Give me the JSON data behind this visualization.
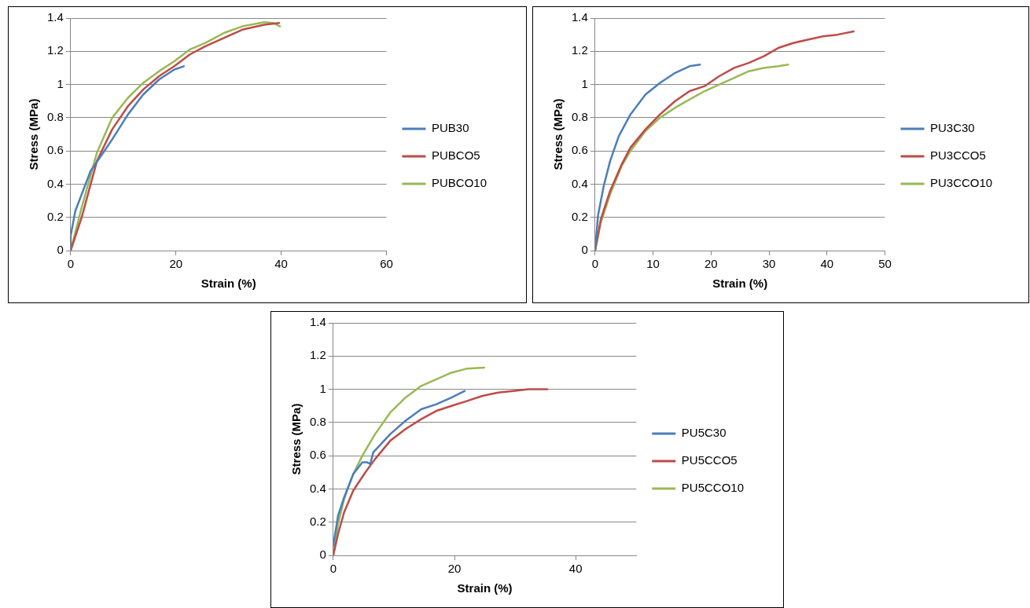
{
  "chart_data": [
    {
      "type": "line",
      "xlabel": "Strain (%)",
      "ylabel": "Stress (MPa)",
      "xlim": [
        0,
        60
      ],
      "xticks": [
        0,
        20,
        40,
        60
      ],
      "ylim": [
        0,
        1.4
      ],
      "yticks": [
        0,
        0.2,
        0.4,
        0.6,
        0.8,
        1,
        1.2,
        1.4
      ],
      "grid": "y",
      "legend": "right",
      "marker": "none",
      "line_style": "solid",
      "series": [
        {
          "name": "PUB30",
          "color": "#4a7ebb",
          "x": [
            0,
            0,
            0.9,
            3.8,
            6.2,
            7.9,
            10.9,
            13.8,
            16.8,
            19.7,
            21.5
          ],
          "values": [
            0,
            0.09,
            0.24,
            0.48,
            0.59,
            0.67,
            0.82,
            0.94,
            1.03,
            1.09,
            1.11
          ]
        },
        {
          "name": "PUBCO5",
          "color": "#be4b48",
          "x": [
            0,
            2.1,
            5,
            7.9,
            10.9,
            13.8,
            16.8,
            19.7,
            22.6,
            25.6,
            29.1,
            32.6,
            36.8,
            39.6
          ],
          "values": [
            0,
            0.2,
            0.54,
            0.73,
            0.87,
            0.97,
            1.05,
            1.11,
            1.18,
            1.23,
            1.28,
            1.33,
            1.36,
            1.37
          ]
        },
        {
          "name": "PUBCO10",
          "color": "#98b954",
          "x": [
            0,
            2.1,
            5,
            7.9,
            10.9,
            13.8,
            16.8,
            19.7,
            22.6,
            25.6,
            29.1,
            32.6,
            36.8,
            38.5,
            39.8
          ],
          "values": [
            0,
            0.26,
            0.59,
            0.8,
            0.92,
            1.01,
            1.08,
            1.14,
            1.21,
            1.25,
            1.31,
            1.35,
            1.375,
            1.37,
            1.35
          ]
        }
      ]
    },
    {
      "type": "line",
      "xlabel": "Strain (%)",
      "ylabel": "Stress (MPa)",
      "xlim": [
        0,
        50
      ],
      "xticks": [
        0,
        10,
        20,
        30,
        40,
        50
      ],
      "ylim": [
        0,
        1.4
      ],
      "yticks": [
        0,
        0.2,
        0.4,
        0.6,
        0.8,
        1,
        1.2,
        1.4
      ],
      "grid": "y",
      "legend": "right",
      "marker": "none",
      "line_style": "solid",
      "series": [
        {
          "name": "PU3C30",
          "color": "#4a7ebb",
          "x": [
            0,
            0.5,
            1.5,
            2.6,
            4.1,
            6.1,
            8.7,
            11.2,
            13.8,
            16.3,
            18.1
          ],
          "values": [
            0,
            0.21,
            0.39,
            0.54,
            0.69,
            0.82,
            0.94,
            1.01,
            1.07,
            1.11,
            1.12
          ]
        },
        {
          "name": "PU3CCO5",
          "color": "#be4b48",
          "x": [
            0,
            1,
            2.6,
            4.6,
            6.1,
            8.7,
            11.2,
            13.8,
            16.3,
            18.9,
            21.4,
            24,
            26.5,
            29.1,
            31.6,
            34.2,
            36.7,
            39.3,
            41.8,
            44.6
          ],
          "values": [
            0,
            0.19,
            0.36,
            0.52,
            0.62,
            0.73,
            0.82,
            0.9,
            0.96,
            0.99,
            1.05,
            1.1,
            1.13,
            1.17,
            1.22,
            1.25,
            1.27,
            1.29,
            1.3,
            1.32
          ]
        },
        {
          "name": "PU3CCO10",
          "color": "#98b954",
          "x": [
            0,
            1,
            2.6,
            4.6,
            6.1,
            8.7,
            11.2,
            13.8,
            16.3,
            18.9,
            21.4,
            24,
            26.5,
            29.1,
            31.6,
            33.3
          ],
          "values": [
            0,
            0.17,
            0.34,
            0.51,
            0.6,
            0.72,
            0.8,
            0.86,
            0.91,
            0.96,
            1,
            1.04,
            1.08,
            1.1,
            1.11,
            1.12
          ]
        }
      ]
    },
    {
      "type": "line",
      "xlabel": "Strain (%)",
      "ylabel": "Stress (MPa)",
      "xlim": [
        0,
        50
      ],
      "xticks": [
        0,
        20,
        40
      ],
      "ylim": [
        0,
        1.4
      ],
      "yticks": [
        0,
        0.2,
        0.4,
        0.6,
        0.8,
        1,
        1.2,
        1.4
      ],
      "grid": "y",
      "legend": "right",
      "marker": "none",
      "line_style": "solid",
      "series": [
        {
          "name": "PU5C30",
          "color": "#4a7ebb",
          "x": [
            0,
            0.8,
            1.8,
            3.3,
            4.8,
            5.6,
            6.1,
            6.6,
            9.4,
            11.9,
            14.5,
            17,
            19.5,
            21.7
          ],
          "values": [
            0.06,
            0.24,
            0.35,
            0.49,
            0.56,
            0.56,
            0.55,
            0.62,
            0.73,
            0.81,
            0.88,
            0.91,
            0.95,
            0.99
          ]
        },
        {
          "name": "PU5CCO5",
          "color": "#be4b48",
          "x": [
            0,
            0.8,
            1.8,
            3.3,
            5.3,
            6.9,
            9.4,
            11.9,
            14.5,
            17,
            19.5,
            22.1,
            24.6,
            27.2,
            29.7,
            32.2,
            35.3
          ],
          "values": [
            0,
            0.13,
            0.26,
            0.39,
            0.5,
            0.58,
            0.69,
            0.76,
            0.82,
            0.87,
            0.9,
            0.93,
            0.96,
            0.98,
            0.99,
            1,
            1
          ]
        },
        {
          "name": "PU5CCO10",
          "color": "#98b954",
          "x": [
            0,
            0.8,
            1.8,
            3.3,
            4.8,
            6.9,
            9.4,
            11.9,
            14.5,
            17,
            19.5,
            22.1,
            24.9
          ],
          "values": [
            0,
            0.19,
            0.34,
            0.49,
            0.6,
            0.73,
            0.86,
            0.95,
            1.02,
            1.06,
            1.1,
            1.125,
            1.13
          ]
        }
      ]
    }
  ]
}
